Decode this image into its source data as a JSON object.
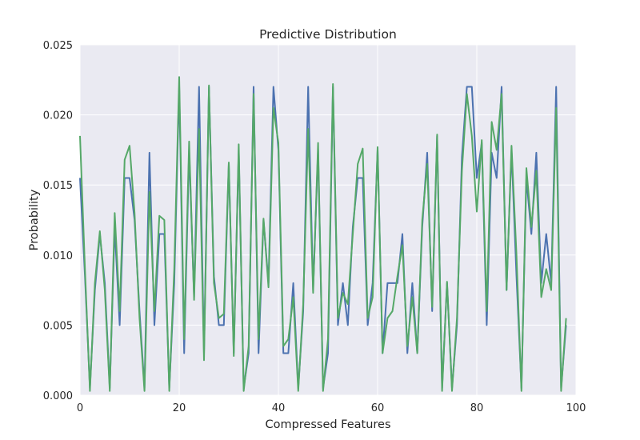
{
  "chart_data": {
    "type": "line",
    "title": "Predictive Distribution",
    "xlabel": "Compressed Features",
    "ylabel": "Probability",
    "xlim": [
      0,
      100
    ],
    "ylim": [
      0,
      0.025
    ],
    "xticks": [
      0,
      20,
      40,
      60,
      80,
      100
    ],
    "xtick_labels": [
      "0",
      "20",
      "40",
      "60",
      "80",
      "100"
    ],
    "yticks": [
      0,
      0.005,
      0.01,
      0.015,
      0.02,
      0.025
    ],
    "ytick_labels": [
      "0.000",
      "0.005",
      "0.010",
      "0.015",
      "0.020",
      "0.025"
    ],
    "grid": true,
    "background": "#EAEAF2",
    "series": [
      {
        "color": "#4C72B0",
        "x": [
          0,
          1,
          2,
          3,
          4,
          5,
          6,
          7,
          8,
          9,
          10,
          11,
          12,
          13,
          14,
          15,
          16,
          17,
          18,
          19,
          20,
          21,
          22,
          23,
          24,
          25,
          26,
          27,
          28,
          29,
          30,
          31,
          32,
          33,
          34,
          35,
          36,
          37,
          38,
          39,
          40,
          41,
          42,
          43,
          44,
          45,
          46,
          47,
          48,
          49,
          50,
          51,
          52,
          53,
          54,
          55,
          56,
          57,
          58,
          59,
          60,
          61,
          62,
          63,
          64,
          65,
          66,
          67,
          68,
          69,
          70,
          71,
          72,
          73,
          74,
          75,
          76,
          77,
          78,
          79,
          80,
          81,
          82,
          83,
          84,
          85,
          86,
          87,
          88,
          89,
          90,
          91,
          92,
          93,
          94,
          95,
          96,
          97,
          98
        ],
        "y": [
          0.0155,
          0.0085,
          0.0005,
          0.0075,
          0.0115,
          0.008,
          0.0005,
          0.012,
          0.005,
          0.0155,
          0.0155,
          0.0125,
          0.006,
          0.0005,
          0.0173,
          0.005,
          0.0115,
          0.0115,
          0.0005,
          0.008,
          0.022,
          0.003,
          0.0175,
          0.007,
          0.022,
          0.003,
          0.022,
          0.0085,
          0.005,
          0.005,
          0.0165,
          0.003,
          0.0175,
          0.0005,
          0.003,
          0.022,
          0.003,
          0.0125,
          0.008,
          0.022,
          0.0175,
          0.003,
          0.003,
          0.008,
          0.0005,
          0.006,
          0.022,
          0.0075,
          0.0175,
          0.0005,
          0.003,
          0.022,
          0.005,
          0.008,
          0.005,
          0.012,
          0.0155,
          0.0155,
          0.005,
          0.008,
          0.0175,
          0.003,
          0.008,
          0.008,
          0.008,
          0.0115,
          0.003,
          0.008,
          0.003,
          0.012,
          0.0173,
          0.006,
          0.0185,
          0.0005,
          0.008,
          0.0005,
          0.005,
          0.017,
          0.022,
          0.022,
          0.0155,
          0.018,
          0.005,
          0.0173,
          0.0155,
          0.022,
          0.0075,
          0.0175,
          0.0085,
          0.0005,
          0.0155,
          0.0115,
          0.0173,
          0.008,
          0.0115,
          0.008,
          0.022,
          0.0005,
          0.005
        ]
      },
      {
        "color": "#55A868",
        "x": [
          0,
          1,
          2,
          3,
          4,
          5,
          6,
          7,
          8,
          9,
          10,
          11,
          12,
          13,
          14,
          15,
          16,
          17,
          18,
          19,
          20,
          21,
          22,
          23,
          24,
          25,
          26,
          27,
          28,
          29,
          30,
          31,
          32,
          33,
          34,
          35,
          36,
          37,
          38,
          39,
          40,
          41,
          42,
          43,
          44,
          45,
          46,
          47,
          48,
          49,
          50,
          51,
          52,
          53,
          54,
          55,
          56,
          57,
          58,
          59,
          60,
          61,
          62,
          63,
          64,
          65,
          66,
          67,
          68,
          69,
          70,
          71,
          72,
          73,
          74,
          75,
          76,
          77,
          78,
          79,
          80,
          81,
          82,
          83,
          84,
          85,
          86,
          87,
          88,
          89,
          90,
          91,
          92,
          93,
          94,
          95,
          96,
          97,
          98
        ],
        "y": [
          0.0185,
          0.009,
          0.0003,
          0.008,
          0.0117,
          0.0075,
          0.0003,
          0.013,
          0.006,
          0.0168,
          0.0178,
          0.013,
          0.0055,
          0.0003,
          0.0145,
          0.006,
          0.0128,
          0.0125,
          0.0003,
          0.009,
          0.0227,
          0.004,
          0.0181,
          0.0068,
          0.019,
          0.0025,
          0.0221,
          0.008,
          0.0055,
          0.0058,
          0.0166,
          0.0028,
          0.0179,
          0.0003,
          0.0035,
          0.0215,
          0.004,
          0.0126,
          0.0077,
          0.0205,
          0.018,
          0.0035,
          0.004,
          0.007,
          0.0003,
          0.0065,
          0.019,
          0.0073,
          0.018,
          0.0003,
          0.004,
          0.0222,
          0.0055,
          0.0073,
          0.0065,
          0.0115,
          0.0165,
          0.0176,
          0.0055,
          0.007,
          0.0177,
          0.003,
          0.0055,
          0.006,
          0.0085,
          0.0107,
          0.0035,
          0.007,
          0.003,
          0.0125,
          0.0165,
          0.0063,
          0.0186,
          0.0003,
          0.0081,
          0.0003,
          0.0055,
          0.016,
          0.0215,
          0.0185,
          0.0131,
          0.0182,
          0.006,
          0.0195,
          0.0175,
          0.0215,
          0.0075,
          0.0178,
          0.01,
          0.0003,
          0.0162,
          0.012,
          0.016,
          0.007,
          0.009,
          0.0075,
          0.0205,
          0.0003,
          0.0055
        ]
      }
    ]
  }
}
